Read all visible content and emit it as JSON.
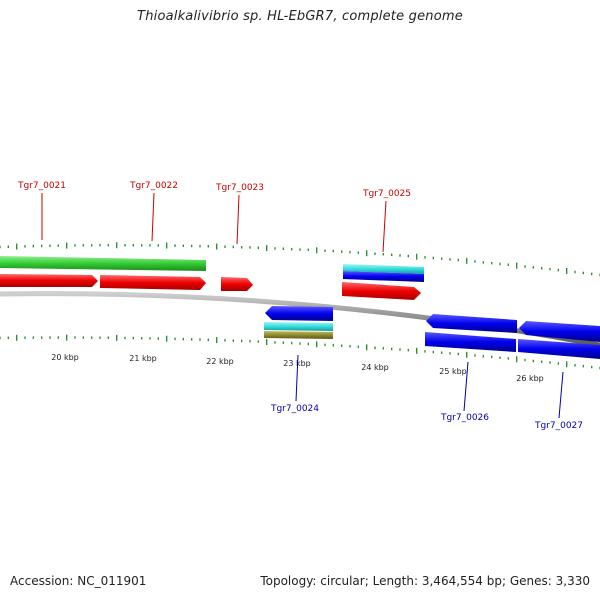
{
  "title": "Thioalkalivibrio sp. HL-EbGR7, complete genome",
  "footer": {
    "accession_label": "Accession:",
    "accession": "NC_011901",
    "topology_label": "Topology:",
    "topology": "circular",
    "length_label": "Length:",
    "length": "3,464,554 bp",
    "genes_label": "Genes:",
    "genes": "3,330"
  },
  "colors": {
    "tick": "#228b22",
    "backbone": "#8a8a8a",
    "forward_label": "#cc0000",
    "reverse_label": "#0000aa",
    "cds": "#ff0000",
    "cds_rev": "#0000ee",
    "gene_fwd": "#33cc33",
    "gene_rev": "#0000ee",
    "rna_cyan": "#33dddd",
    "olive": "#8f8a2e"
  },
  "scale_labels": [
    "20 kbp",
    "21 kbp",
    "22 kbp",
    "23 kbp",
    "24 kbp",
    "25 kbp",
    "26 kbp"
  ],
  "forward_genes": [
    "Tgr7_0021",
    "Tgr7_0022",
    "Tgr7_0023",
    "Tgr7_0025"
  ],
  "reverse_genes": [
    "Tgr7_0024",
    "Tgr7_0026",
    "Tgr7_0027"
  ]
}
